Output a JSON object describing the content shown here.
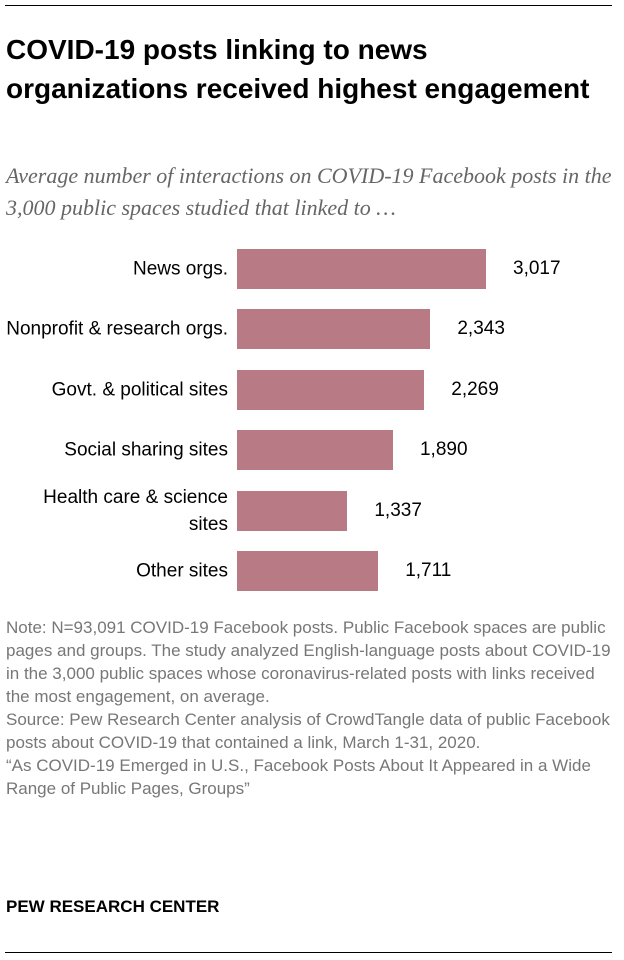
{
  "chart_data": {
    "type": "bar",
    "orientation": "horizontal",
    "title": "COVID-19 posts linking to news organizations received highest engagement",
    "subtitle": "Average number of interactions on COVID-19 Facebook posts in the 3,000 public spaces studied that linked to …",
    "categories": [
      "News orgs.",
      "Nonprofit & research orgs.",
      "Govt. & political sites",
      "Social sharing sites",
      "Health care & science sites",
      "Other sites"
    ],
    "values": [
      3017,
      2343,
      2269,
      1890,
      1337,
      1711
    ],
    "value_labels": [
      "3,017",
      "2,343",
      "2,269",
      "1,890",
      "1,337",
      "1,711"
    ],
    "color": "#b87a85",
    "notes": [
      "Note: N=93,091 COVID-19 Facebook posts.  Public Facebook spaces are public pages and groups. The study analyzed English-language posts about COVID-19 in the 3,000 public spaces whose coronavirus-related posts with links received the most engagement, on average.",
      "Source: Pew Research Center analysis of CrowdTangle data of public Facebook posts about COVID-19 that contained a link, March 1-31, 2020.",
      "“As COVID-19 Emerged in U.S., Facebook Posts About It Appeared in a Wide Range of Public Pages, Groups”"
    ],
    "source": "PEW RESEARCH CENTER"
  }
}
